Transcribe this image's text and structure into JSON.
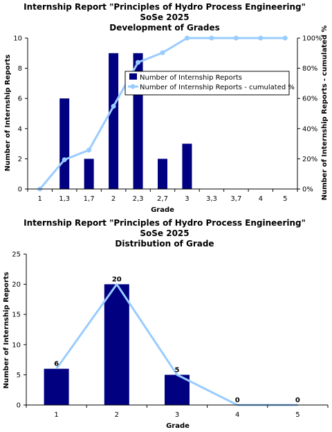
{
  "chart_data": [
    {
      "type": "bar",
      "title_lines": [
        "Internship Report \"Principles of Hydro Process Engineering\"",
        "SoSe 2025",
        "Development of Grades"
      ],
      "xlabel": "Grade",
      "ylabel": "Number of Internship Reports",
      "y2label": "Number of Internship Reports - cumulated %",
      "categories": [
        "1",
        "1,3",
        "1,7",
        "2",
        "2,3",
        "2,7",
        "3",
        "3,3",
        "3,7",
        "4",
        "5"
      ],
      "ylim": [
        0,
        10
      ],
      "yticks": [
        "0",
        "2",
        "4",
        "6",
        "8",
        "10"
      ],
      "y2lim": [
        0,
        100
      ],
      "y2ticks": [
        "0%",
        "20%",
        "40%",
        "60%",
        "80%",
        "100%"
      ],
      "legend_position": "upper-right (inside plot)",
      "series": [
        {
          "name": "Number of Internship Reports",
          "kind": "bar",
          "color": "#000080",
          "values": [
            0,
            6,
            2,
            9,
            9,
            2,
            3,
            0,
            0,
            0,
            0
          ]
        },
        {
          "name": "Number of Internship Reports - cumulated %",
          "kind": "line",
          "axis": "right",
          "color": "#99ccff",
          "values": [
            0,
            19.4,
            25.8,
            54.8,
            83.9,
            90.3,
            100,
            100,
            100,
            100,
            100
          ]
        }
      ]
    },
    {
      "type": "bar",
      "title_lines": [
        "Internship Report \"Principles of Hydro Process Engineering\"",
        "SoSe 2025",
        "Distribution of Grade"
      ],
      "xlabel": "Grade",
      "ylabel": "Number of Internship Reports",
      "categories": [
        "1",
        "2",
        "3",
        "4",
        "5"
      ],
      "ylim": [
        0,
        25
      ],
      "yticks": [
        "0",
        "5",
        "10",
        "15",
        "20",
        "25"
      ],
      "series": [
        {
          "kind": "bar",
          "color": "#000080",
          "values": [
            6,
            20,
            5,
            0,
            0
          ]
        },
        {
          "kind": "line",
          "color": "#99ccff",
          "values": [
            6,
            20,
            5,
            0,
            0
          ]
        }
      ],
      "data_labels": [
        "6",
        "20",
        "5",
        "0",
        "0"
      ]
    }
  ]
}
